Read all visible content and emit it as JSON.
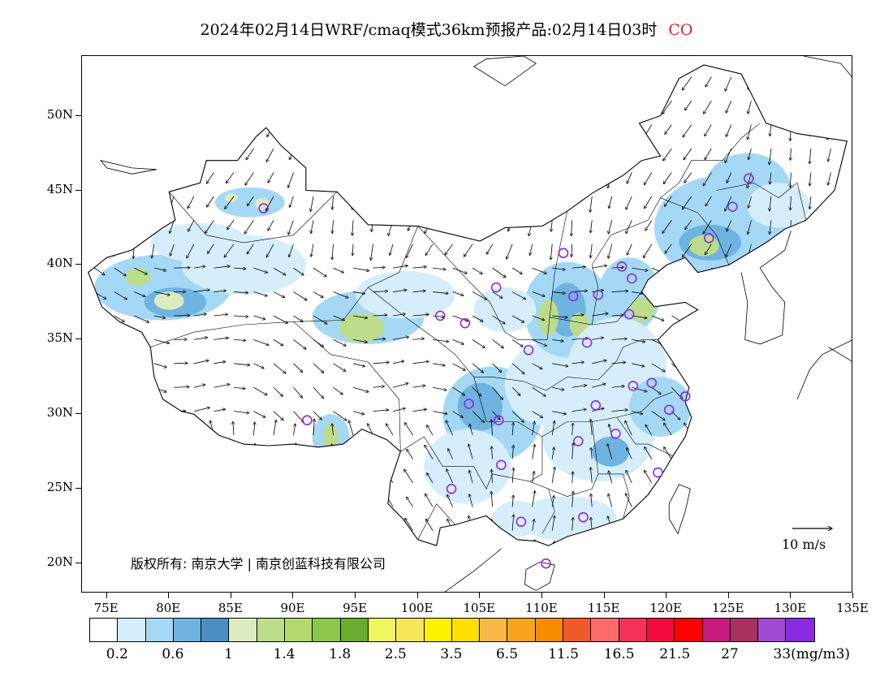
{
  "title": {
    "text": "2024年02月14日WRF/cmaq模式36km预报产品:02月14日03时",
    "species": "CO"
  },
  "copyright": "版权所有: 南京大学 | 南京创蓝科技有限公司",
  "reference_vector": {
    "label": "10 m/s"
  },
  "map_extent": {
    "lon_min": 73,
    "lon_max": 135,
    "lat_min": 18,
    "lat_max": 54
  },
  "axes": {
    "lat_ticks": [
      "50N",
      "45N",
      "40N",
      "35N",
      "30N",
      "25N",
      "20N"
    ],
    "lat_values": [
      50,
      45,
      40,
      35,
      30,
      25,
      20
    ],
    "lon_ticks": [
      "75E",
      "80E",
      "85E",
      "90E",
      "95E",
      "100E",
      "105E",
      "110E",
      "115E",
      "120E",
      "125E",
      "130E",
      "135E"
    ],
    "lon_values": [
      75,
      80,
      85,
      90,
      95,
      100,
      105,
      110,
      115,
      120,
      125,
      130,
      135
    ]
  },
  "colorbar": {
    "colors": [
      "#ffffff",
      "#d6eefb",
      "#a5d8f5",
      "#6fb3e0",
      "#4a8fc4",
      "#dcecc0",
      "#bedd8c",
      "#b4da6e",
      "#8cc84b",
      "#6aab30",
      "#f2f660",
      "#f6e65a",
      "#fff200",
      "#ffde00",
      "#f8b846",
      "#f7a520",
      "#f88b00",
      "#f15a2b",
      "#ff6b6b",
      "#f5325a",
      "#f20a3c",
      "#ff0000",
      "#c51b7e",
      "#a8325f",
      "#a14ad2",
      "#8a2be2"
    ],
    "labels": [
      "0.2",
      "0.6",
      "1",
      "1.4",
      "1.8",
      "2.5",
      "3.5",
      "6.5",
      "11.5",
      "16.5",
      "21.5",
      "27",
      "33(mg/m3)"
    ],
    "label_cells": [
      1,
      3,
      5,
      7,
      9,
      11,
      13,
      15,
      17,
      19,
      21,
      23,
      25
    ]
  },
  "concentration_patches": [
    {
      "lon": 79.5,
      "lat": 38.5,
      "rx": 5.5,
      "ry": 2.2,
      "level": 2
    },
    {
      "lon": 80.5,
      "lat": 37.5,
      "rx": 2.5,
      "ry": 1.0,
      "level": 3
    },
    {
      "lon": 80.0,
      "lat": 37.6,
      "rx": 1.2,
      "ry": 0.6,
      "level": 5
    },
    {
      "lon": 77.5,
      "lat": 39.2,
      "rx": 1.0,
      "ry": 0.6,
      "level": 6
    },
    {
      "lon": 82.5,
      "lat": 41.5,
      "rx": 4.0,
      "ry": 1.3,
      "level": 1
    },
    {
      "lon": 86.5,
      "lat": 44.2,
      "rx": 2.8,
      "ry": 1.0,
      "level": 2
    },
    {
      "lon": 87.5,
      "lat": 44.1,
      "rx": 0.6,
      "ry": 0.4,
      "level": 5
    },
    {
      "lon": 85.0,
      "lat": 44.5,
      "rx": 0.5,
      "ry": 0.3,
      "level": 5
    },
    {
      "lon": 96.0,
      "lat": 36.5,
      "rx": 4.5,
      "ry": 1.8,
      "level": 2
    },
    {
      "lon": 95.5,
      "lat": 35.8,
      "rx": 1.8,
      "ry": 1.0,
      "level": 6
    },
    {
      "lon": 93.0,
      "lat": 28.5,
      "rx": 1.5,
      "ry": 1.5,
      "level": 2
    },
    {
      "lon": 93.0,
      "lat": 28.5,
      "rx": 0.6,
      "ry": 0.9,
      "level": 6
    },
    {
      "lon": 99.0,
      "lat": 38.0,
      "rx": 4.0,
      "ry": 1.6,
      "level": 1
    },
    {
      "lon": 106.0,
      "lat": 30.0,
      "rx": 4.0,
      "ry": 3.2,
      "level": 2
    },
    {
      "lon": 105.0,
      "lat": 30.5,
      "rx": 1.8,
      "ry": 1.6,
      "level": 3
    },
    {
      "lon": 104.0,
      "lat": 26.5,
      "rx": 3.5,
      "ry": 2.5,
      "level": 1
    },
    {
      "lon": 110.5,
      "lat": 32.0,
      "rx": 3.5,
      "ry": 2.8,
      "level": 1
    },
    {
      "lon": 112.0,
      "lat": 37.0,
      "rx": 3.5,
      "ry": 3.2,
      "level": 2
    },
    {
      "lon": 112.0,
      "lat": 37.0,
      "rx": 1.5,
      "ry": 1.8,
      "level": 3
    },
    {
      "lon": 110.5,
      "lat": 36.5,
      "rx": 0.8,
      "ry": 1.2,
      "level": 6
    },
    {
      "lon": 113.0,
      "lat": 36.0,
      "rx": 0.8,
      "ry": 0.8,
      "level": 6
    },
    {
      "lon": 117.0,
      "lat": 38.0,
      "rx": 2.5,
      "ry": 2.5,
      "level": 2
    },
    {
      "lon": 118.0,
      "lat": 37.0,
      "rx": 1.0,
      "ry": 0.8,
      "level": 6
    },
    {
      "lon": 116.0,
      "lat": 33.0,
      "rx": 4.0,
      "ry": 3.5,
      "level": 1
    },
    {
      "lon": 114.5,
      "lat": 28.5,
      "rx": 4.5,
      "ry": 3.0,
      "level": 1
    },
    {
      "lon": 115.5,
      "lat": 27.5,
      "rx": 1.5,
      "ry": 1.0,
      "level": 3
    },
    {
      "lon": 119.5,
      "lat": 30.5,
      "rx": 2.5,
      "ry": 2.0,
      "level": 2
    },
    {
      "lon": 112.0,
      "lat": 23.0,
      "rx": 4.0,
      "ry": 1.5,
      "level": 1
    },
    {
      "lon": 108.0,
      "lat": 23.0,
      "rx": 2.0,
      "ry": 1.2,
      "level": 1
    },
    {
      "lon": 124.5,
      "lat": 42.5,
      "rx": 5.5,
      "ry": 3.5,
      "level": 2
    },
    {
      "lon": 123.5,
      "lat": 41.5,
      "rx": 2.5,
      "ry": 1.2,
      "level": 3
    },
    {
      "lon": 123.0,
      "lat": 41.3,
      "rx": 1.2,
      "ry": 0.7,
      "level": 6
    },
    {
      "lon": 126.5,
      "lat": 45.0,
      "rx": 3.5,
      "ry": 2.5,
      "level": 2
    },
    {
      "lon": 129.0,
      "lat": 44.0,
      "rx": 2.5,
      "ry": 1.5,
      "level": 1
    },
    {
      "lon": 86.0,
      "lat": 40.0,
      "rx": 5.0,
      "ry": 2.0,
      "level": 1
    },
    {
      "lon": 107.0,
      "lat": 37.0,
      "rx": 2.5,
      "ry": 1.5,
      "level": 1
    }
  ],
  "stations": [
    {
      "lon": 87.6,
      "lat": 43.8
    },
    {
      "lon": 91.1,
      "lat": 29.6
    },
    {
      "lon": 101.8,
      "lat": 36.6
    },
    {
      "lon": 103.8,
      "lat": 36.1
    },
    {
      "lon": 106.3,
      "lat": 38.5
    },
    {
      "lon": 111.7,
      "lat": 40.8
    },
    {
      "lon": 116.4,
      "lat": 39.9
    },
    {
      "lon": 117.2,
      "lat": 39.1
    },
    {
      "lon": 114.5,
      "lat": 38.0
    },
    {
      "lon": 112.5,
      "lat": 37.9
    },
    {
      "lon": 117.0,
      "lat": 36.7
    },
    {
      "lon": 113.6,
      "lat": 34.8
    },
    {
      "lon": 108.9,
      "lat": 34.3
    },
    {
      "lon": 104.1,
      "lat": 30.7
    },
    {
      "lon": 106.5,
      "lat": 29.6
    },
    {
      "lon": 106.7,
      "lat": 26.6
    },
    {
      "lon": 102.7,
      "lat": 25.0
    },
    {
      "lon": 108.3,
      "lat": 22.8
    },
    {
      "lon": 110.3,
      "lat": 20.0
    },
    {
      "lon": 113.3,
      "lat": 23.1
    },
    {
      "lon": 112.9,
      "lat": 28.2
    },
    {
      "lon": 115.9,
      "lat": 28.7
    },
    {
      "lon": 114.3,
      "lat": 30.6
    },
    {
      "lon": 117.3,
      "lat": 31.9
    },
    {
      "lon": 118.8,
      "lat": 32.1
    },
    {
      "lon": 121.5,
      "lat": 31.2
    },
    {
      "lon": 120.2,
      "lat": 30.3
    },
    {
      "lon": 119.3,
      "lat": 26.1
    },
    {
      "lon": 123.4,
      "lat": 41.8
    },
    {
      "lon": 125.3,
      "lat": 43.9
    },
    {
      "lon": 126.6,
      "lat": 45.8
    }
  ],
  "boundaries": {
    "china_outline": [
      [
        73.5,
        39.5
      ],
      [
        75.0,
        40.5
      ],
      [
        77.0,
        41.0
      ],
      [
        79.5,
        42.5
      ],
      [
        80.5,
        43.0
      ],
      [
        80.0,
        44.9
      ],
      [
        82.5,
        45.5
      ],
      [
        83.0,
        47.0
      ],
      [
        85.5,
        47.0
      ],
      [
        87.0,
        48.6
      ],
      [
        87.8,
        49.2
      ],
      [
        89.0,
        48.0
      ],
      [
        91.0,
        46.5
      ],
      [
        91.0,
        45.0
      ],
      [
        93.5,
        44.9
      ],
      [
        96.0,
        42.7
      ],
      [
        100.0,
        42.6
      ],
      [
        105.0,
        41.6
      ],
      [
        107.0,
        42.5
      ],
      [
        110.0,
        42.6
      ],
      [
        112.0,
        43.6
      ],
      [
        114.0,
        44.8
      ],
      [
        116.5,
        46.0
      ],
      [
        118.0,
        47.0
      ],
      [
        119.5,
        47.3
      ],
      [
        117.8,
        49.5
      ],
      [
        119.5,
        50.0
      ],
      [
        121.0,
        52.5
      ],
      [
        123.0,
        53.4
      ],
      [
        126.0,
        52.8
      ],
      [
        128.0,
        49.5
      ],
      [
        130.5,
        48.8
      ],
      [
        134.5,
        48.3
      ],
      [
        133.5,
        45.0
      ],
      [
        131.2,
        43.0
      ],
      [
        129.5,
        42.4
      ],
      [
        128.0,
        41.5
      ],
      [
        125.0,
        40.0
      ],
      [
        122.5,
        39.5
      ],
      [
        121.5,
        40.5
      ],
      [
        120.0,
        40.0
      ],
      [
        118.5,
        39.0
      ],
      [
        118.0,
        38.2
      ],
      [
        119.0,
        37.2
      ],
      [
        121.5,
        37.5
      ],
      [
        122.5,
        37.0
      ],
      [
        120.5,
        36.0
      ],
      [
        119.3,
        35.0
      ],
      [
        120.5,
        33.5
      ],
      [
        121.8,
        31.8
      ],
      [
        121.5,
        30.8
      ],
      [
        122.0,
        29.8
      ],
      [
        121.5,
        28.5
      ],
      [
        120.5,
        27.2
      ],
      [
        119.5,
        25.8
      ],
      [
        118.5,
        24.6
      ],
      [
        116.5,
        23.0
      ],
      [
        114.0,
        22.3
      ],
      [
        112.0,
        21.8
      ],
      [
        110.5,
        21.2
      ],
      [
        109.5,
        21.5
      ],
      [
        108.0,
        21.6
      ],
      [
        106.6,
        22.4
      ],
      [
        105.5,
        23.2
      ],
      [
        103.0,
        22.6
      ],
      [
        101.8,
        22.4
      ],
      [
        101.5,
        21.2
      ],
      [
        100.0,
        21.6
      ],
      [
        98.8,
        23.0
      ],
      [
        97.6,
        24.0
      ],
      [
        97.8,
        25.5
      ],
      [
        98.6,
        27.5
      ],
      [
        97.5,
        28.3
      ],
      [
        95.5,
        29.0
      ],
      [
        94.0,
        28.0
      ],
      [
        92.0,
        27.8
      ],
      [
        90.0,
        28.0
      ],
      [
        88.0,
        27.9
      ],
      [
        86.0,
        28.0
      ],
      [
        84.0,
        28.6
      ],
      [
        82.0,
        30.0
      ],
      [
        81.0,
        30.2
      ],
      [
        79.5,
        31.0
      ],
      [
        78.8,
        32.5
      ],
      [
        78.5,
        34.5
      ],
      [
        77.8,
        35.5
      ],
      [
        76.0,
        36.2
      ],
      [
        74.6,
        37.2
      ],
      [
        73.5,
        39.5
      ]
    ],
    "coastlines": [
      [
        [
          135.0,
          52.5
        ],
        [
          134.0,
          53.5
        ],
        [
          131.0,
          54.0
        ]
      ],
      [
        [
          102.0,
          18.0
        ],
        [
          104.5,
          19.5
        ],
        [
          106.0,
          20.5
        ],
        [
          106.7,
          21.0
        ]
      ],
      [
        [
          126.0,
          39.5
        ],
        [
          126.5,
          37.5
        ],
        [
          126.3,
          35.0
        ],
        [
          127.5,
          34.7
        ],
        [
          129.3,
          35.3
        ],
        [
          129.5,
          37.5
        ],
        [
          128.5,
          38.5
        ],
        [
          127.5,
          39.8
        ],
        [
          129.5,
          41.0
        ],
        [
          130.0,
          42.3
        ]
      ],
      [
        [
          130.5,
          31.0
        ],
        [
          131.5,
          33.0
        ],
        [
          132.5,
          34.0
        ],
        [
          135.0,
          35.0
        ]
      ],
      [
        [
          133.0,
          34.5
        ],
        [
          135.0,
          33.5
        ]
      ],
      [
        [
          97.0,
          18.0
        ],
        [
          98.0,
          16.5
        ]
      ]
    ],
    "islands": [
      [
        [
          121.0,
          25.3
        ],
        [
          121.9,
          25.0
        ],
        [
          121.5,
          23.5
        ],
        [
          120.9,
          22.0
        ],
        [
          120.2,
          23.0
        ],
        [
          120.2,
          24.0
        ],
        [
          121.0,
          25.3
        ]
      ],
      [
        [
          108.7,
          19.6
        ],
        [
          109.8,
          20.1
        ],
        [
          111.0,
          19.9
        ],
        [
          110.6,
          18.7
        ],
        [
          109.5,
          18.2
        ],
        [
          108.6,
          18.6
        ],
        [
          108.7,
          19.6
        ]
      ]
    ],
    "lakes": [
      [
        [
          74.5,
          47.0
        ],
        [
          77.0,
          46.5
        ],
        [
          79.0,
          46.4
        ],
        [
          77.0,
          46.1
        ],
        [
          75.0,
          46.5
        ],
        [
          74.5,
          47.0
        ]
      ],
      [
        [
          104.5,
          53.3
        ],
        [
          107.0,
          52.0
        ],
        [
          109.5,
          53.5
        ],
        [
          108.5,
          54.0
        ],
        [
          105.5,
          53.8
        ],
        [
          104.5,
          53.3
        ]
      ]
    ],
    "province_lines": [
      [
        [
          80.0,
          44.9
        ],
        [
          83.0,
          42.0
        ],
        [
          86.0,
          41.5
        ],
        [
          90.0,
          42.0
        ],
        [
          93.5,
          44.9
        ]
      ],
      [
        [
          78.5,
          34.5
        ],
        [
          82.0,
          35.5
        ],
        [
          86.0,
          36.0
        ],
        [
          90.0,
          36.2
        ],
        [
          94.0,
          36.3
        ],
        [
          96.0,
          38.5
        ],
        [
          98.5,
          39.5
        ],
        [
          100.0,
          42.6
        ]
      ],
      [
        [
          90.0,
          36.2
        ],
        [
          93.0,
          34.0
        ],
        [
          96.0,
          33.5
        ],
        [
          98.5,
          31.0
        ],
        [
          98.6,
          27.5
        ]
      ],
      [
        [
          96.0,
          38.5
        ],
        [
          99.0,
          36.5
        ],
        [
          101.5,
          35.0
        ],
        [
          103.0,
          34.0
        ],
        [
          104.5,
          32.5
        ],
        [
          106.0,
          32.5
        ],
        [
          108.5,
          32.2
        ],
        [
          110.3,
          31.6
        ]
      ],
      [
        [
          100.0,
          42.6
        ],
        [
          104.0,
          39.0
        ],
        [
          105.8,
          37.5
        ],
        [
          107.0,
          35.5
        ],
        [
          108.0,
          35.0
        ],
        [
          110.4,
          35.0
        ],
        [
          110.6,
          36.5
        ],
        [
          111.0,
          39.5
        ],
        [
          112.0,
          43.6
        ]
      ],
      [
        [
          110.6,
          36.5
        ],
        [
          114.0,
          36.0
        ],
        [
          114.5,
          38.5
        ],
        [
          114.0,
          40.0
        ],
        [
          115.5,
          42.0
        ],
        [
          118.5,
          43.0
        ],
        [
          119.5,
          44.5
        ],
        [
          121.0,
          45.5
        ],
        [
          122.0,
          47.0
        ]
      ],
      [
        [
          114.0,
          36.0
        ],
        [
          116.0,
          36.2
        ],
        [
          118.0,
          38.2
        ]
      ],
      [
        [
          110.3,
          31.6
        ],
        [
          112.0,
          32.5
        ],
        [
          114.5,
          32.3
        ],
        [
          116.0,
          33.6
        ],
        [
          116.5,
          34.5
        ],
        [
          118.0,
          35.0
        ],
        [
          119.3,
          35.0
        ]
      ],
      [
        [
          104.5,
          32.5
        ],
        [
          105.5,
          29.5
        ],
        [
          108.0,
          29.5
        ],
        [
          110.0,
          28.5
        ],
        [
          110.0,
          26.0
        ],
        [
          109.0,
          25.5
        ],
        [
          106.0,
          26.0
        ],
        [
          105.5,
          25.0
        ],
        [
          104.5,
          26.5
        ],
        [
          102.0,
          26.5
        ],
        [
          100.5,
          28.5
        ],
        [
          98.6,
          27.5
        ]
      ],
      [
        [
          110.0,
          28.5
        ],
        [
          112.0,
          29.5
        ],
        [
          114.0,
          29.5
        ],
        [
          116.0,
          29.8
        ],
        [
          118.0,
          30.2
        ],
        [
          119.0,
          31.0
        ],
        [
          120.5,
          31.5
        ]
      ],
      [
        [
          114.0,
          29.5
        ],
        [
          114.5,
          26.0
        ],
        [
          114.0,
          25.0
        ],
        [
          112.0,
          24.5
        ],
        [
          110.5,
          25.0
        ],
        [
          109.0,
          25.5
        ]
      ],
      [
        [
          116.0,
          29.8
        ],
        [
          117.5,
          28.0
        ],
        [
          118.5,
          28.0
        ],
        [
          120.5,
          27.2
        ]
      ],
      [
        [
          114.5,
          26.0
        ],
        [
          116.5,
          26.0
        ],
        [
          117.0,
          24.5
        ],
        [
          116.5,
          23.0
        ]
      ],
      [
        [
          110.5,
          25.0
        ],
        [
          111.0,
          23.5
        ],
        [
          110.0,
          22.0
        ]
      ],
      [
        [
          122.0,
          47.0
        ],
        [
          124.5,
          47.0
        ],
        [
          126.0,
          48.5
        ],
        [
          127.5,
          49.5
        ]
      ],
      [
        [
          124.0,
          45.0
        ],
        [
          127.0,
          45.5
        ],
        [
          129.0,
          44.5
        ],
        [
          130.5,
          45.5
        ],
        [
          131.2,
          43.0
        ]
      ],
      [
        [
          119.5,
          44.5
        ],
        [
          122.5,
          43.5
        ],
        [
          124.0,
          42.0
        ],
        [
          125.0,
          40.0
        ]
      ],
      [
        [
          100.0,
          21.6
        ],
        [
          101.5,
          24.0
        ],
        [
          103.0,
          22.6
        ]
      ]
    ]
  }
}
